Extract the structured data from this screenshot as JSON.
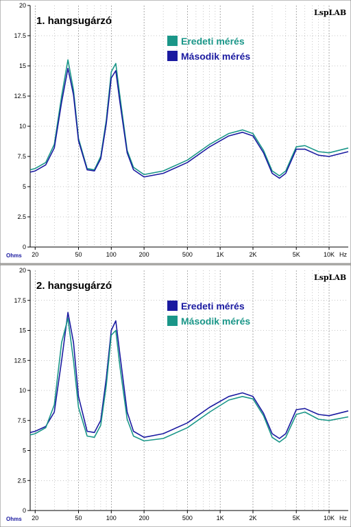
{
  "colors": {
    "teal": "#1a9688",
    "navy": "#1a1aa0"
  },
  "chart_data": [
    {
      "type": "line",
      "title": "1. hangsugárzó",
      "brand": "LspLAB",
      "xlabel": "",
      "ylabel": "",
      "x_unit": "Hz",
      "y_unit": "Ohms",
      "x_scale": "log",
      "xlim": [
        18,
        15000
      ],
      "ylim": [
        0,
        20
      ],
      "yticks": [
        0,
        2.5,
        5,
        7.5,
        10,
        12.5,
        15,
        17.5,
        20
      ],
      "ytick_labels": [
        "0",
        "2.5",
        "5",
        "7.5",
        "10",
        "12.5",
        "15",
        "17.5",
        "20"
      ],
      "xticks": [
        20,
        50,
        100,
        200,
        500,
        1000,
        2000,
        5000,
        10000
      ],
      "xtick_labels": [
        "20",
        "50",
        "100",
        "200",
        "500",
        "1K",
        "2K",
        "5K",
        "10K"
      ],
      "grid": true,
      "legend": "top-center",
      "series": [
        {
          "name": "Eredeti mérés",
          "color": "#1a9688",
          "x": [
            18,
            20,
            25,
            30,
            35,
            40,
            45,
            50,
            60,
            70,
            80,
            90,
            100,
            110,
            120,
            140,
            160,
            200,
            300,
            500,
            800,
            1200,
            1600,
            2000,
            2500,
            3000,
            3500,
            4000,
            5000,
            6000,
            8000,
            10000,
            15000
          ],
          "y": [
            6.4,
            6.5,
            7.0,
            8.5,
            12.5,
            15.5,
            13.0,
            9.0,
            6.5,
            6.4,
            7.5,
            10.5,
            14.5,
            15.2,
            12.5,
            8.0,
            6.6,
            6.0,
            6.3,
            7.2,
            8.5,
            9.4,
            9.7,
            9.4,
            8.0,
            6.3,
            5.9,
            6.3,
            8.3,
            8.4,
            7.9,
            7.8,
            8.2
          ]
        },
        {
          "name": "Második mérés",
          "color": "#1a1aa0",
          "x": [
            18,
            20,
            25,
            30,
            35,
            40,
            45,
            50,
            60,
            70,
            80,
            90,
            100,
            110,
            120,
            140,
            160,
            200,
            300,
            500,
            800,
            1200,
            1600,
            2000,
            2500,
            3000,
            3500,
            4000,
            5000,
            6000,
            8000,
            10000,
            15000
          ],
          "y": [
            6.2,
            6.3,
            6.8,
            8.2,
            12.0,
            14.8,
            12.6,
            8.8,
            6.4,
            6.3,
            7.3,
            10.2,
            14.0,
            14.6,
            12.0,
            7.8,
            6.4,
            5.8,
            6.1,
            7.0,
            8.3,
            9.2,
            9.5,
            9.2,
            7.8,
            6.1,
            5.7,
            6.1,
            8.1,
            8.1,
            7.6,
            7.5,
            7.9
          ]
        }
      ]
    },
    {
      "type": "line",
      "title": "2. hangsugárzó",
      "brand": "LspLAB",
      "xlabel": "",
      "ylabel": "",
      "x_unit": "Hz",
      "y_unit": "Ohms",
      "x_scale": "log",
      "xlim": [
        18,
        15000
      ],
      "ylim": [
        0,
        20
      ],
      "yticks": [
        0,
        2.5,
        5,
        7.5,
        10,
        12.5,
        15,
        17.5,
        20
      ],
      "ytick_labels": [
        "0",
        "2.5",
        "5",
        "7.5",
        "10",
        "12.5",
        "15",
        "17.5",
        "20"
      ],
      "xticks": [
        20,
        50,
        100,
        200,
        500,
        1000,
        2000,
        5000,
        10000
      ],
      "xtick_labels": [
        "20",
        "50",
        "100",
        "200",
        "500",
        "1K",
        "2K",
        "5K",
        "10K"
      ],
      "grid": true,
      "legend": "top-center",
      "series": [
        {
          "name": "Eredeti mérés",
          "color": "#1a1aa0",
          "x": [
            18,
            20,
            25,
            30,
            35,
            40,
            45,
            50,
            60,
            70,
            80,
            90,
            100,
            110,
            120,
            140,
            160,
            200,
            300,
            500,
            800,
            1200,
            1600,
            2000,
            2500,
            3000,
            3500,
            4000,
            5000,
            6000,
            8000,
            10000,
            15000
          ],
          "y": [
            6.5,
            6.6,
            7.0,
            8.2,
            12.5,
            16.5,
            14.0,
            9.5,
            6.6,
            6.5,
            7.5,
            11.0,
            15.0,
            15.8,
            13.0,
            8.2,
            6.6,
            6.1,
            6.4,
            7.3,
            8.6,
            9.5,
            9.8,
            9.5,
            8.1,
            6.4,
            6.0,
            6.4,
            8.4,
            8.5,
            8.0,
            7.9,
            8.3
          ]
        },
        {
          "name": "Második mérés",
          "color": "#1a9688",
          "x": [
            18,
            20,
            25,
            30,
            35,
            40,
            45,
            50,
            60,
            70,
            80,
            90,
            100,
            110,
            120,
            140,
            160,
            200,
            300,
            500,
            800,
            1200,
            1600,
            2000,
            2500,
            3000,
            3500,
            4000,
            5000,
            6000,
            8000,
            10000,
            15000
          ],
          "y": [
            6.3,
            6.4,
            6.9,
            8.8,
            14.0,
            16.0,
            12.5,
            8.6,
            6.2,
            6.1,
            7.1,
            10.4,
            14.6,
            15.0,
            12.0,
            7.6,
            6.2,
            5.8,
            6.0,
            6.9,
            8.2,
            9.2,
            9.5,
            9.3,
            7.9,
            6.1,
            5.7,
            6.1,
            8.0,
            8.2,
            7.6,
            7.5,
            7.8
          ]
        }
      ]
    }
  ]
}
